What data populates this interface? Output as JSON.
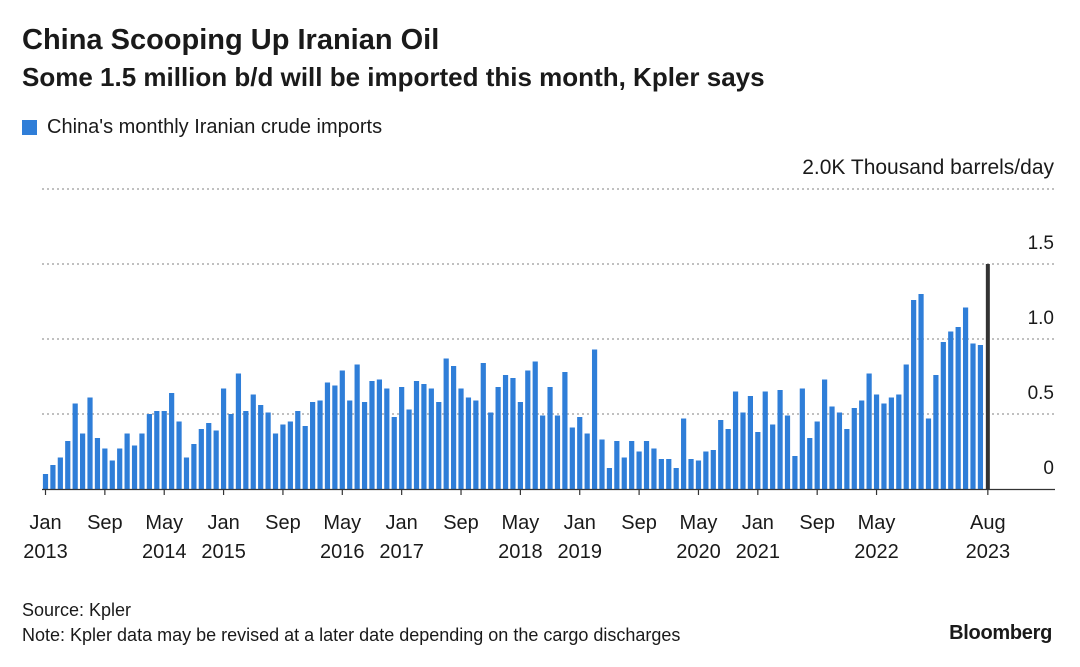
{
  "colors": {
    "bar": "#2f7ed8",
    "highlight_bar": "#333333",
    "grid": "#9a9a9a",
    "text": "#1a1a1a"
  },
  "source": "Source: Kpler",
  "note": "Note: Kpler data may be revised at a later date depending on the cargo discharges",
  "brand": "Bloomberg",
  "chart_data": {
    "type": "bar",
    "title": "China Scooping Up Iranian Oil",
    "subtitle": "Some 1.5 million b/d will be imported this month, Kpler says",
    "legend": "China's monthly Iranian crude imports",
    "unit_label": "Thousand barrels/day",
    "ylim": [
      0,
      2.0
    ],
    "y_ticks": [
      {
        "value": 0,
        "label": "0"
      },
      {
        "value": 0.5,
        "label": "0.5"
      },
      {
        "value": 1.0,
        "label": "1.0"
      },
      {
        "value": 1.5,
        "label": "1.5"
      },
      {
        "value": 2.0,
        "label": "2.0K"
      }
    ],
    "x_ticks": [
      {
        "index": 0,
        "label": "Jan",
        "sub": "2013"
      },
      {
        "index": 8,
        "label": "Sep",
        "sub": ""
      },
      {
        "index": 16,
        "label": "May",
        "sub": "2014"
      },
      {
        "index": 24,
        "label": "Jan",
        "sub": "2015"
      },
      {
        "index": 32,
        "label": "Sep",
        "sub": ""
      },
      {
        "index": 40,
        "label": "May",
        "sub": "2016"
      },
      {
        "index": 48,
        "label": "Jan",
        "sub": "2017"
      },
      {
        "index": 56,
        "label": "Sep",
        "sub": ""
      },
      {
        "index": 64,
        "label": "May",
        "sub": "2018"
      },
      {
        "index": 72,
        "label": "Jan",
        "sub": "2019"
      },
      {
        "index": 80,
        "label": "Sep",
        "sub": ""
      },
      {
        "index": 88,
        "label": "May",
        "sub": "2020"
      },
      {
        "index": 96,
        "label": "Jan",
        "sub": "2021"
      },
      {
        "index": 104,
        "label": "Sep",
        "sub": ""
      },
      {
        "index": 112,
        "label": "May",
        "sub": "2022"
      },
      {
        "index": 127,
        "label": "Aug",
        "sub": "2023"
      }
    ],
    "start": "2013-01",
    "end": "2023-08",
    "highlight_index": 127,
    "values": [
      0.1,
      0.16,
      0.21,
      0.32,
      0.57,
      0.37,
      0.61,
      0.34,
      0.27,
      0.19,
      0.27,
      0.37,
      0.29,
      0.37,
      0.5,
      0.52,
      0.52,
      0.64,
      0.45,
      0.21,
      0.3,
      0.4,
      0.44,
      0.39,
      0.67,
      0.5,
      0.77,
      0.52,
      0.63,
      0.56,
      0.51,
      0.37,
      0.43,
      0.45,
      0.52,
      0.42,
      0.58,
      0.59,
      0.71,
      0.69,
      0.79,
      0.59,
      0.83,
      0.58,
      0.72,
      0.73,
      0.67,
      0.48,
      0.68,
      0.53,
      0.72,
      0.7,
      0.67,
      0.58,
      0.87,
      0.82,
      0.67,
      0.61,
      0.59,
      0.84,
      0.51,
      0.68,
      0.76,
      0.74,
      0.58,
      0.79,
      0.85,
      0.49,
      0.68,
      0.49,
      0.78,
      0.41,
      0.48,
      0.37,
      0.93,
      0.33,
      0.14,
      0.32,
      0.21,
      0.32,
      0.25,
      0.32,
      0.27,
      0.2,
      0.2,
      0.14,
      0.47,
      0.2,
      0.19,
      0.25,
      0.26,
      0.46,
      0.4,
      0.65,
      0.51,
      0.62,
      0.38,
      0.65,
      0.43,
      0.66,
      0.49,
      0.22,
      0.67,
      0.34,
      0.45,
      0.73,
      0.55,
      0.51,
      0.4,
      0.54,
      0.59,
      0.77,
      0.63,
      0.57,
      0.61,
      0.63,
      0.83,
      1.26,
      1.3,
      0.47,
      0.76,
      0.98,
      1.05,
      1.08,
      1.21,
      0.97,
      0.96,
      1.5
    ]
  }
}
